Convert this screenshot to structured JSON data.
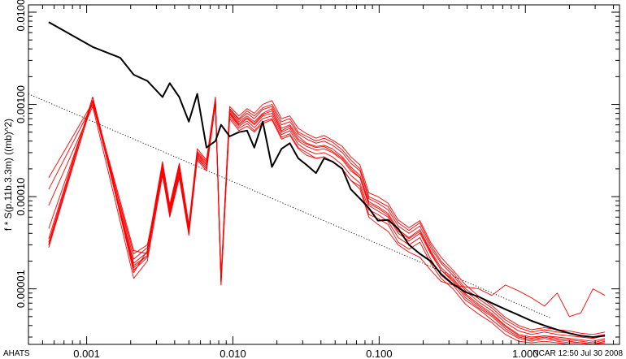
{
  "chart_data": {
    "type": "line",
    "title": "",
    "xlabel": "",
    "ylabel": "f * S(p.11b.3.3m) ((mb)^2)",
    "x_scale": "log",
    "y_scale": "log",
    "xlim": [
      0.0004,
      4.4
    ],
    "ylim": [
      2.5e-06,
      0.012
    ],
    "grid": false,
    "x_ticks": [
      {
        "value": 0.001,
        "label": "0.001"
      },
      {
        "value": 0.01,
        "label": "0.010"
      },
      {
        "value": 0.1,
        "label": "0.100"
      },
      {
        "value": 1,
        "label": "1.000"
      }
    ],
    "y_ticks": [
      {
        "value": 1e-05,
        "label": "0.00001"
      },
      {
        "value": 0.0001,
        "label": "0.00010"
      },
      {
        "value": 0.001,
        "label": "0.00100"
      },
      {
        "value": 0.01,
        "label": "0.01000"
      }
    ],
    "reference_line": {
      "style": "dotted",
      "color": "#000000",
      "x": [
        0.0004,
        1.5
      ],
      "y": [
        0.0013,
        4.8e-06
      ]
    },
    "series": [
      {
        "color": "#000000",
        "width": 2.0,
        "x": [
          0.00055,
          0.0011,
          0.0017,
          0.0021,
          0.0026,
          0.0033,
          0.0037,
          0.0043,
          0.005,
          0.0057,
          0.0066,
          0.0076,
          0.0083,
          0.0095,
          0.011,
          0.0125,
          0.014,
          0.016,
          0.0185,
          0.0215,
          0.0245,
          0.028,
          0.032,
          0.037,
          0.042,
          0.048,
          0.056,
          0.064,
          0.074,
          0.085,
          0.098,
          0.115,
          0.135,
          0.16,
          0.19,
          0.225,
          0.265,
          0.32,
          0.39,
          0.48,
          0.59,
          0.73,
          0.9,
          1.1,
          1.35,
          1.65,
          2.0,
          2.4,
          2.9,
          3.5
        ],
        "y": [
          0.0078,
          0.0042,
          0.0032,
          0.0021,
          0.0018,
          0.0012,
          0.0017,
          0.0012,
          0.00065,
          0.0013,
          0.00034,
          0.0004,
          0.0006,
          0.00045,
          0.0005,
          0.00052,
          0.00034,
          0.00065,
          0.00021,
          0.00033,
          0.00038,
          0.00026,
          0.00022,
          0.00018,
          0.00026,
          0.00024,
          0.0002,
          0.00012,
          9.5e-05,
          7.5e-05,
          5.5e-05,
          5.6e-05,
          4.5e-05,
          3e-05,
          2.4e-05,
          2e-05,
          1.45e-05,
          1.12e-05,
          9.2e-06,
          8.2e-06,
          7e-06,
          6e-06,
          5.2e-06,
          4.5e-06,
          4e-06,
          3.6e-06,
          3.3e-06,
          3.1e-06,
          3e-06,
          3.1e-06
        ]
      },
      {
        "color": "#ff0000",
        "width": 0.9,
        "x": [
          0.00055,
          0.0011,
          0.0021,
          0.0026,
          0.0033,
          0.0037,
          0.0043,
          0.005,
          0.0057,
          0.0066,
          0.0076,
          0.0083,
          0.0095,
          0.011,
          0.0125,
          0.014,
          0.016,
          0.0185,
          0.0215,
          0.0245,
          0.028,
          0.032,
          0.037,
          0.042,
          0.048,
          0.056,
          0.064,
          0.074,
          0.085,
          0.098,
          0.115,
          0.135,
          0.16,
          0.19,
          0.225,
          0.265,
          0.32,
          0.39,
          0.48,
          0.59,
          0.73,
          0.9,
          1.1,
          1.35,
          1.65,
          2.0,
          2.4,
          2.9,
          3.5
        ],
        "y": [
          2.8e-05,
          0.0011,
          1.7e-05,
          2.3e-05,
          0.0002,
          6.8e-05,
          0.00019,
          4.2e-05,
          0.00028,
          0.00021,
          0.0011,
          1.2e-05,
          0.0008,
          0.0006,
          0.0007,
          0.0006,
          0.00075,
          0.0008,
          0.0005,
          0.00055,
          0.0004,
          0.00035,
          0.00032,
          0.00033,
          0.0003,
          0.00025,
          0.00019,
          0.00016,
          8e-05,
          7e-05,
          6e-05,
          4e-05,
          3.3e-05,
          4e-05,
          2.4e-05,
          1.6e-05,
          1.2e-05,
          8e-06,
          6.2e-06,
          5e-06,
          3.7e-06,
          3e-06,
          2.8e-06,
          3e-06,
          2.8e-06,
          2.7e-06,
          2.6e-06,
          2.5e-06,
          2.7e-06
        ]
      },
      {
        "color": "#ff0000",
        "width": 0.9,
        "x": [
          0.00055,
          0.0011,
          0.0021,
          0.0026,
          0.0033,
          0.0037,
          0.0043,
          0.005,
          0.0057,
          0.0066,
          0.0076,
          0.0083,
          0.0095,
          0.011,
          0.0125,
          0.014,
          0.016,
          0.0185,
          0.0215,
          0.0245,
          0.028,
          0.032,
          0.037,
          0.042,
          0.048,
          0.056,
          0.064,
          0.074,
          0.085,
          0.098,
          0.115,
          0.135,
          0.16,
          0.19,
          0.225,
          0.265,
          0.32,
          0.39,
          0.48,
          0.59,
          0.73,
          0.9,
          1.1,
          1.35,
          1.65,
          2.0,
          2.4,
          2.9,
          3.5
        ],
        "y": [
          3e-05,
          0.0011,
          1.9e-05,
          2.5e-05,
          0.00022,
          7.5e-05,
          0.00021,
          4.5e-05,
          0.0003,
          0.00023,
          0.0012,
          1.3e-05,
          0.00088,
          0.00068,
          0.0008,
          0.0007,
          0.00088,
          0.00095,
          0.0006,
          0.00065,
          0.00048,
          0.00042,
          0.00038,
          0.0004,
          0.00036,
          0.0003,
          0.00023,
          0.00019,
          9.5e-05,
          8.5e-05,
          7.2e-05,
          4.8e-05,
          4e-05,
          4.8e-05,
          2.8e-05,
          1.9e-05,
          1.4e-05,
          9.5e-06,
          7.2e-06,
          5.8e-06,
          4.3e-06,
          3.5e-06,
          3.2e-06,
          3.4e-06,
          3.2e-06,
          3.1e-06,
          3e-06,
          2.9e-06,
          3.1e-06
        ]
      },
      {
        "color": "#ff0000",
        "width": 0.9,
        "x": [
          0.00055,
          0.0011,
          0.0021,
          0.0026,
          0.0033,
          0.0037,
          0.0043,
          0.005,
          0.0057,
          0.0066,
          0.0076,
          0.0083,
          0.0095,
          0.011,
          0.0125,
          0.014,
          0.016,
          0.0185,
          0.0215,
          0.0245,
          0.028,
          0.032,
          0.037,
          0.042,
          0.048,
          0.056,
          0.064,
          0.074,
          0.085,
          0.098,
          0.115,
          0.135,
          0.16,
          0.19,
          0.225,
          0.265,
          0.32,
          0.39,
          0.48,
          0.59,
          0.73,
          0.9,
          1.1,
          1.35,
          1.65,
          2.0,
          2.4,
          2.9,
          3.5
        ],
        "y": [
          3.5e-05,
          0.0012,
          2.1e-05,
          2.8e-05,
          0.00024,
          8.2e-05,
          0.00023,
          5e-05,
          0.00033,
          0.00025,
          0.0012,
          1.4e-05,
          0.00095,
          0.00075,
          0.0009,
          0.0008,
          0.001,
          0.0011,
          0.0007,
          0.00075,
          0.00055,
          0.00048,
          0.00043,
          0.00046,
          0.00041,
          0.00035,
          0.00027,
          0.00022,
          0.00011,
          0.0001,
          8.5e-05,
          5.6e-05,
          4.6e-05,
          5.5e-05,
          3.2e-05,
          2.2e-05,
          1.6e-05,
          1.1e-05,
          8.3e-06,
          6.6e-06,
          4.9e-06,
          4e-06,
          3.6e-06,
          3.8e-06,
          3.6e-06,
          3.5e-06,
          3.3e-06,
          3.2e-06,
          3.4e-06
        ]
      },
      {
        "color": "#ff0000",
        "width": 0.9,
        "x": [
          0.00055,
          0.0011,
          0.0021,
          0.0026,
          0.0033,
          0.0037,
          0.0043,
          0.005,
          0.0057,
          0.0066,
          0.0076,
          0.0083,
          0.0095,
          0.011,
          0.0125,
          0.014,
          0.016,
          0.0185,
          0.0215,
          0.0245,
          0.028,
          0.032,
          0.037,
          0.042,
          0.048,
          0.056,
          0.064,
          0.074,
          0.085,
          0.098,
          0.115,
          0.135,
          0.16,
          0.19,
          0.225,
          0.265,
          0.32,
          0.39,
          0.48,
          0.59,
          0.73,
          0.9,
          1.1,
          1.35,
          1.65,
          2.0,
          2.4,
          2.9,
          3.5
        ],
        "y": [
          8e-05,
          0.00095,
          1.3e-05,
          2e-05,
          0.00017,
          6e-05,
          0.00016,
          3.8e-05,
          0.00025,
          0.00019,
          0.001,
          1.1e-05,
          0.0007,
          0.00052,
          0.00058,
          0.0005,
          0.00062,
          0.00068,
          0.00042,
          0.00046,
          0.00033,
          0.00028,
          0.00026,
          0.00027,
          0.00024,
          0.0002,
          0.00015,
          0.00013,
          6.4e-05,
          5.8e-05,
          5e-05,
          3.2e-05,
          2.7e-05,
          3.2e-05,
          1.9e-05,
          1.3e-05,
          1e-05,
          6.8e-06,
          5.3e-06,
          4.3e-06,
          3.2e-06,
          2.7e-06,
          2.6e-06,
          2.7e-06,
          2.6e-06,
          2.5e-06,
          2.5e-06,
          2.5e-06,
          2.6e-06
        ]
      },
      {
        "color": "#ff0000",
        "width": 0.9,
        "x": [
          0.00055,
          0.0011,
          0.0021,
          0.0026,
          0.0033,
          0.0037,
          0.0043,
          0.005,
          0.0057,
          0.0066,
          0.0076,
          0.0083,
          0.0095,
          0.011,
          0.0125,
          0.014,
          0.016,
          0.0185,
          0.0215,
          0.0245,
          0.028,
          0.032,
          0.037,
          0.042,
          0.048,
          0.056,
          0.064,
          0.074,
          0.085,
          0.098,
          0.115,
          0.135,
          0.16,
          0.19,
          0.225,
          0.265,
          0.32,
          0.39,
          0.48,
          0.59,
          0.73,
          0.9,
          1.1,
          1.35,
          1.65,
          2.0,
          2.4,
          2.9,
          3.5
        ],
        "y": [
          4.5e-05,
          0.0011,
          1.6e-05,
          2.2e-05,
          0.00021,
          7e-05,
          0.0002,
          4.3e-05,
          0.00029,
          0.00022,
          0.0011,
          1.2e-05,
          0.00085,
          0.00065,
          0.00075,
          0.00065,
          0.0008,
          0.0009,
          0.00055,
          0.0006,
          0.00045,
          0.00038,
          0.00035,
          0.00036,
          0.00033,
          0.00027,
          0.00021,
          0.00017,
          8.8e-05,
          7.8e-05,
          6.6e-05,
          4.4e-05,
          3.6e-05,
          4.4e-05,
          2.6e-05,
          1.7e-05,
          1.3e-05,
          8.8e-06,
          6.8e-06,
          5.4e-06,
          4e-06,
          3.2e-06,
          3e-06,
          3.1e-06,
          3e-06,
          2.9e-06,
          2.8e-06,
          2.7e-06,
          2.9e-06
        ]
      },
      {
        "color": "#ff0000",
        "width": 0.9,
        "x": [
          0.00055,
          0.0011,
          0.0021,
          0.0026,
          0.0033,
          0.0037,
          0.0043,
          0.005,
          0.0057,
          0.0066,
          0.0076,
          0.0083,
          0.0095,
          0.011,
          0.0125,
          0.014,
          0.016,
          0.0185,
          0.0215,
          0.0245,
          0.028,
          0.032,
          0.037,
          0.042,
          0.048,
          0.056,
          0.064,
          0.074,
          0.085,
          0.098,
          0.115,
          0.135,
          0.16,
          0.19,
          0.225,
          0.265,
          0.32,
          0.39,
          0.48,
          0.59,
          0.73,
          0.9,
          1.1,
          1.35,
          1.65,
          2.0,
          2.4,
          2.9,
          3.5
        ],
        "y": [
          0.00012,
          0.001,
          2.4e-05,
          3e-05,
          0.00019,
          6.5e-05,
          0.00018,
          4e-05,
          0.00027,
          0.0002,
          0.00105,
          1.2e-05,
          0.00078,
          0.00058,
          0.00066,
          0.00056,
          0.0007,
          0.00075,
          0.00047,
          0.00052,
          0.00037,
          0.00032,
          0.00029,
          0.0003,
          0.00027,
          0.00022,
          0.00017,
          0.00014,
          7.2e-05,
          6.4e-05,
          5.4e-05,
          3.6e-05,
          3e-05,
          3.6e-05,
          2.1e-05,
          1.4e-05,
          1.1e-05,
          7.5e-06,
          6e-06,
          4.6e-06,
          3.5e-06,
          2.9e-06,
          2.7e-06,
          2.9e-06,
          2.7e-06,
          2.6e-06,
          2.6e-06,
          2.5e-06,
          2.7e-06
        ]
      },
      {
        "color": "#ff0000",
        "width": 0.9,
        "x": [
          0.00055,
          0.0011,
          0.0021,
          0.0026,
          0.0033,
          0.0037,
          0.0043,
          0.005,
          0.0057,
          0.0066,
          0.0076,
          0.0083,
          0.0095,
          0.011,
          0.0125,
          0.014,
          0.016,
          0.0185,
          0.0215,
          0.0245,
          0.028,
          0.032,
          0.037,
          0.042,
          0.048,
          0.056,
          0.064,
          0.074,
          0.085,
          0.098,
          0.115,
          0.135,
          0.16,
          0.19,
          0.225,
          0.265,
          0.32,
          0.39,
          0.48,
          0.59,
          0.73,
          0.9,
          1.1,
          1.35,
          1.65,
          2.0,
          2.4,
          2.9,
          3.5
        ],
        "y": [
          3.2e-05,
          0.0012,
          1.5e-05,
          2.6e-05,
          0.00023,
          7.8e-05,
          0.00022,
          4.8e-05,
          0.00031,
          0.00024,
          0.00115,
          1.3e-05,
          0.0009,
          0.0007,
          0.00085,
          0.00075,
          0.00092,
          0.001,
          0.00065,
          0.0007,
          0.0005,
          0.00045,
          0.0004,
          0.00043,
          0.00039,
          0.00032,
          0.00025,
          0.0002,
          0.0001,
          9e-05,
          7.8e-05,
          5.2e-05,
          4.3e-05,
          5.2e-05,
          3e-05,
          2e-05,
          1.5e-05,
          1e-05,
          7.8e-06,
          6.2e-06,
          4.6e-06,
          3.8e-06,
          3.4e-06,
          3.6e-06,
          3.4e-06,
          3.3e-06,
          3.1e-06,
          3e-06,
          3.2e-06
        ]
      },
      {
        "color": "#ff0000",
        "width": 0.9,
        "x": [
          0.00055,
          0.0011,
          0.0021,
          0.0026,
          0.0033,
          0.0037,
          0.0043,
          0.005,
          0.0057,
          0.0066,
          0.0076,
          0.0083,
          0.0095,
          0.011,
          0.0125,
          0.014,
          0.016,
          0.0185,
          0.0215,
          0.0245,
          0.028,
          0.032,
          0.037,
          0.042,
          0.048,
          0.056,
          0.064,
          0.074,
          0.085,
          0.098,
          0.115,
          0.135,
          0.16,
          0.19,
          0.225,
          0.265,
          0.32,
          0.39,
          0.48,
          0.59,
          0.73,
          0.9,
          1.1,
          1.35,
          1.65,
          2.0,
          2.4,
          2.9,
          3.5
        ],
        "y": [
          3e-05,
          0.0011,
          2.6e-05,
          2.4e-05,
          0.0002,
          7.2e-05,
          0.0002,
          4.4e-05,
          0.00029,
          0.00022,
          0.0011,
          1.2e-05,
          0.00082,
          0.00062,
          0.00072,
          0.00062,
          0.00078,
          0.00085,
          0.00052,
          0.00058,
          0.00042,
          0.00037,
          0.00034,
          0.00035,
          0.00031,
          0.00026,
          0.0002,
          0.00016,
          8.4e-05,
          7.5e-05,
          6.3e-05,
          4.2e-05,
          3.5e-05,
          4.2e-05,
          2.5e-05,
          1.6e-05,
          1.25e-05,
          8.5e-06,
          6.5e-06,
          5.2e-06,
          3.9e-06,
          3.1e-06,
          2.9e-06,
          3.1e-06,
          2.9e-06,
          2.8e-06,
          2.7e-06,
          2.6e-06,
          2.8e-06
        ]
      },
      {
        "color": "#ff0000",
        "width": 0.9,
        "x": [
          0.00055,
          0.0011,
          0.0021,
          0.0026,
          0.0033,
          0.0037,
          0.0043,
          0.005,
          0.0057,
          0.0066,
          0.0076,
          0.0083,
          0.0095,
          0.011,
          0.0125,
          0.014,
          0.016,
          0.0185,
          0.0215,
          0.0245,
          0.028,
          0.032,
          0.037,
          0.042,
          0.048,
          0.056,
          0.064,
          0.074,
          0.085,
          0.098,
          0.115,
          0.135,
          0.16,
          0.19,
          0.225,
          0.265,
          0.32,
          0.39,
          0.48,
          0.59,
          0.73,
          0.9,
          1.1,
          1.35,
          1.65,
          2.0,
          2.4,
          2.9,
          3.5
        ],
        "y": [
          0.00016,
          0.00105,
          1.8e-05,
          2.3e-05,
          0.00018,
          6.2e-05,
          0.00017,
          4e-05,
          0.00026,
          0.0002,
          0.001,
          1.1e-05,
          0.00074,
          0.00055,
          0.00062,
          0.00052,
          0.00065,
          0.0007,
          0.00044,
          0.00048,
          0.00034,
          0.0003,
          0.00026,
          0.00027,
          0.00024,
          0.0002,
          0.00015,
          0.00012,
          6e-05,
          5e-05,
          4.2e-05,
          3e-05,
          2.5e-05,
          2.2e-05,
          1.6e-05,
          1.2e-05,
          1.1e-05,
          1.05e-05,
          1e-05,
          8.5e-06,
          1.1e-05,
          9.5e-06,
          8e-06,
          6.5e-06,
          9e-06,
          5e-06,
          5.5e-06,
          1e-05,
          8.5e-06
        ]
      }
    ]
  },
  "footer": {
    "left": "AHATS",
    "right": "NCAR 12:50 Jul 30 2008"
  }
}
